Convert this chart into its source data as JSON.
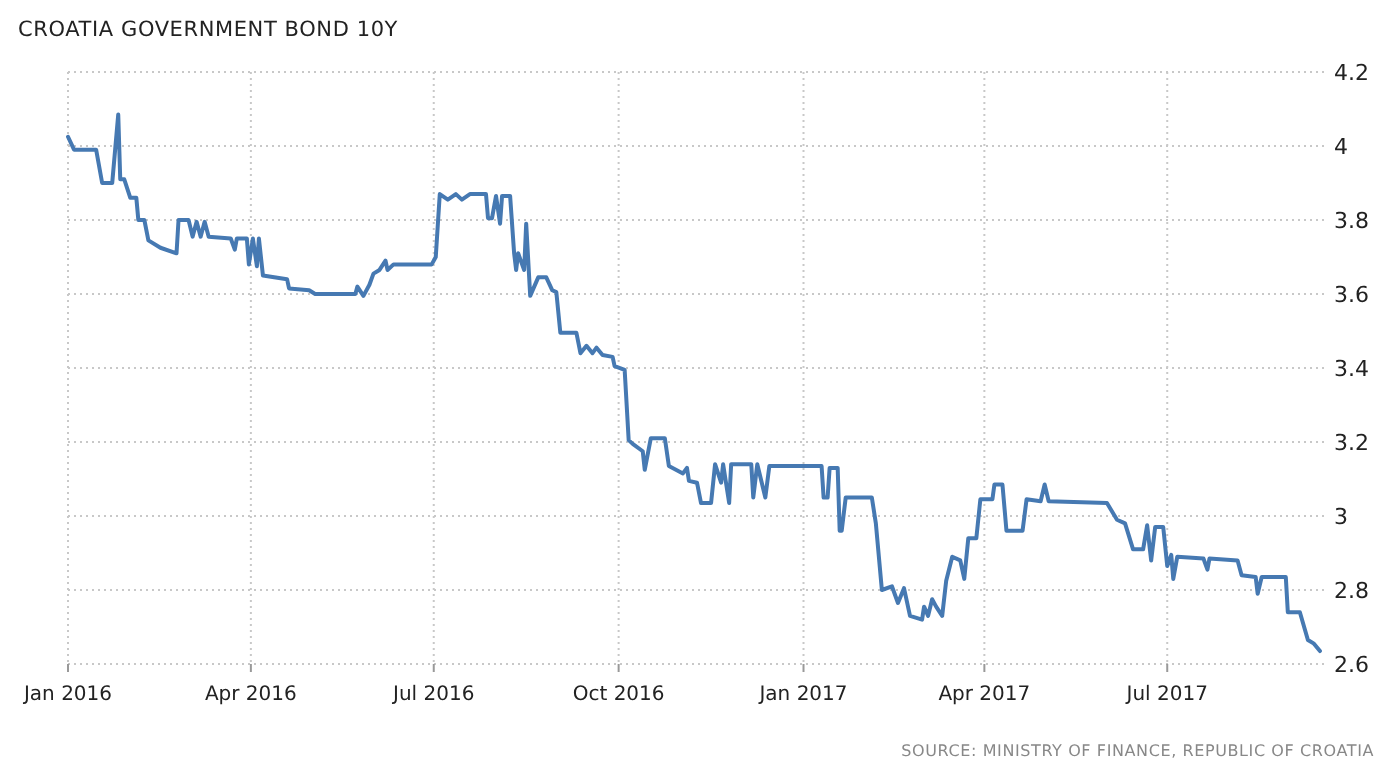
{
  "chart_data": {
    "type": "line",
    "title": "CROATIA GOVERNMENT BOND 10Y",
    "annotations": [
      "SOURCE: MINISTRY OF FINANCE, REPUBLIC OF CROATIA"
    ],
    "x": [
      "2016-01-01",
      "2016-01-04",
      "2016-01-15",
      "2016-01-18",
      "2016-01-23",
      "2016-01-26",
      "2016-01-27",
      "2016-01-29",
      "2016-02-01",
      "2016-02-04",
      "2016-02-05",
      "2016-02-08",
      "2016-02-10",
      "2016-02-16",
      "2016-02-24",
      "2016-02-25",
      "2016-03-01",
      "2016-03-03",
      "2016-03-05",
      "2016-03-07",
      "2016-03-09",
      "2016-03-11",
      "2016-03-22",
      "2016-03-24",
      "2016-03-25",
      "2016-03-30",
      "2016-03-31",
      "2016-04-02",
      "2016-04-04",
      "2016-04-05",
      "2016-04-07",
      "2016-04-19",
      "2016-04-20",
      "2016-04-30",
      "2016-05-03",
      "2016-05-23",
      "2016-05-24",
      "2016-05-27",
      "2016-05-30",
      "2016-06-01",
      "2016-06-04",
      "2016-06-07",
      "2016-06-08",
      "2016-06-11",
      "2016-06-30",
      "2016-07-02",
      "2016-07-04",
      "2016-07-08",
      "2016-07-12",
      "2016-07-15",
      "2016-07-19",
      "2016-07-27",
      "2016-07-28",
      "2016-07-30",
      "2016-08-01",
      "2016-08-03",
      "2016-08-04",
      "2016-08-08",
      "2016-08-10",
      "2016-08-11",
      "2016-08-12",
      "2016-08-15",
      "2016-08-16",
      "2016-08-18",
      "2016-08-22",
      "2016-08-26",
      "2016-08-29",
      "2016-08-31",
      "2016-09-02",
      "2016-09-10",
      "2016-09-12",
      "2016-09-15",
      "2016-09-18",
      "2016-09-20",
      "2016-09-23",
      "2016-09-28",
      "2016-09-29",
      "2016-10-04",
      "2016-10-06",
      "2016-10-08",
      "2016-10-13",
      "2016-10-14",
      "2016-10-17",
      "2016-10-24",
      "2016-10-26",
      "2016-11-02",
      "2016-11-04",
      "2016-11-05",
      "2016-11-09",
      "2016-11-11",
      "2016-11-16",
      "2016-11-18",
      "2016-11-21",
      "2016-11-22",
      "2016-11-25",
      "2016-11-26",
      "2016-12-06",
      "2016-12-07",
      "2016-12-09",
      "2016-12-13",
      "2016-12-15",
      "2017-01-10",
      "2017-01-11",
      "2017-01-13",
      "2017-01-14",
      "2017-01-18",
      "2017-01-19",
      "2017-01-20",
      "2017-01-22",
      "2017-02-04",
      "2017-02-06",
      "2017-02-09",
      "2017-02-14",
      "2017-02-17",
      "2017-02-20",
      "2017-02-23",
      "2017-03-01",
      "2017-03-02",
      "2017-03-04",
      "2017-03-06",
      "2017-03-08",
      "2017-03-11",
      "2017-03-13",
      "2017-03-16",
      "2017-03-20",
      "2017-03-22",
      "2017-03-24",
      "2017-03-28",
      "2017-03-30",
      "2017-04-05",
      "2017-04-06",
      "2017-04-10",
      "2017-04-12",
      "2017-04-20",
      "2017-04-22",
      "2017-04-29",
      "2017-05-01",
      "2017-05-03",
      "2017-06-01",
      "2017-06-06",
      "2017-06-10",
      "2017-06-14",
      "2017-06-19",
      "2017-06-21",
      "2017-06-23",
      "2017-06-25",
      "2017-06-29",
      "2017-07-01",
      "2017-07-03",
      "2017-07-04",
      "2017-07-06",
      "2017-07-19",
      "2017-07-21",
      "2017-07-22",
      "2017-08-05",
      "2017-08-07",
      "2017-08-14",
      "2017-08-15",
      "2017-08-17",
      "2017-08-29",
      "2017-08-30",
      "2017-09-05",
      "2017-09-09",
      "2017-09-12",
      "2017-09-15"
    ],
    "series": [
      {
        "color": "#4679b2",
        "values": [
          4.025,
          3.99,
          3.99,
          3.9,
          3.9,
          4.085,
          3.91,
          3.91,
          3.86,
          3.86,
          3.8,
          3.8,
          3.745,
          3.725,
          3.71,
          3.8,
          3.8,
          3.755,
          3.795,
          3.755,
          3.795,
          3.755,
          3.75,
          3.72,
          3.75,
          3.75,
          3.68,
          3.75,
          3.675,
          3.75,
          3.65,
          3.64,
          3.615,
          3.61,
          3.6,
          3.6,
          3.62,
          3.595,
          3.625,
          3.655,
          3.665,
          3.69,
          3.665,
          3.68,
          3.68,
          3.7,
          3.87,
          3.855,
          3.87,
          3.855,
          3.87,
          3.87,
          3.805,
          3.805,
          3.865,
          3.79,
          3.865,
          3.865,
          3.71,
          3.665,
          3.71,
          3.665,
          3.79,
          3.595,
          3.645,
          3.645,
          3.61,
          3.605,
          3.495,
          3.495,
          3.44,
          3.46,
          3.44,
          3.455,
          3.435,
          3.43,
          3.405,
          3.395,
          3.205,
          3.195,
          3.175,
          3.125,
          3.21,
          3.21,
          3.135,
          3.115,
          3.13,
          3.095,
          3.09,
          3.035,
          3.035,
          3.14,
          3.09,
          3.14,
          3.035,
          3.14,
          3.14,
          3.05,
          3.14,
          3.05,
          3.135,
          3.135,
          3.05,
          3.05,
          3.13,
          3.13,
          2.96,
          2.96,
          3.05,
          3.05,
          2.98,
          2.8,
          2.81,
          2.765,
          2.805,
          2.73,
          2.72,
          2.755,
          2.73,
          2.775,
          2.755,
          2.73,
          2.825,
          2.89,
          2.88,
          2.83,
          2.94,
          2.94,
          3.045,
          3.045,
          3.085,
          3.085,
          2.96,
          2.96,
          3.045,
          3.04,
          3.085,
          3.04,
          3.035,
          2.99,
          2.98,
          2.91,
          2.91,
          2.975,
          2.88,
          2.97,
          2.97,
          2.865,
          2.895,
          2.83,
          2.89,
          2.885,
          2.855,
          2.885,
          2.88,
          2.84,
          2.835,
          2.79,
          2.835,
          2.835,
          2.74,
          2.74,
          2.665,
          2.655,
          2.635
        ]
      }
    ],
    "xlim": [
      "2016-01-01",
      "2017-09-18"
    ],
    "xticks": [
      {
        "value": "2016-01-01",
        "label": "Jan 2016"
      },
      {
        "value": "2016-04-01",
        "label": "Apr 2016"
      },
      {
        "value": "2016-07-01",
        "label": "Jul 2016"
      },
      {
        "value": "2016-10-01",
        "label": "Oct 2016"
      },
      {
        "value": "2017-01-01",
        "label": "Jan 2017"
      },
      {
        "value": "2017-04-01",
        "label": "Apr 2017"
      },
      {
        "value": "2017-07-01",
        "label": "Jul 2017"
      }
    ],
    "ylim": [
      2.6,
      4.2
    ],
    "yticks": [
      2.6,
      2.8,
      3,
      3.2,
      3.4,
      3.6,
      3.8,
      4,
      4.2
    ],
    "grid": true,
    "line_style": "solid"
  }
}
